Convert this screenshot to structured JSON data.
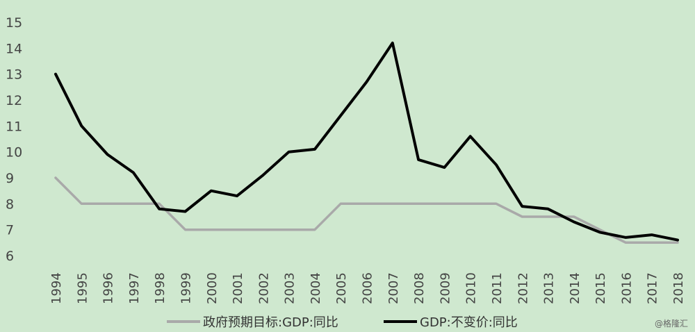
{
  "chart_data": {
    "type": "line",
    "x": [
      "1994",
      "1995",
      "1996",
      "1997",
      "1998",
      "1999",
      "2000",
      "2001",
      "2002",
      "2003",
      "2004",
      "2005",
      "2006",
      "2007",
      "2008",
      "2009",
      "2010",
      "2011",
      "2012",
      "2013",
      "2014",
      "2015",
      "2016",
      "2017",
      "2018"
    ],
    "series": [
      {
        "name": "政府预期目标:GDP:同比",
        "color": "#a9a9a9",
        "values": [
          9,
          8,
          8,
          8,
          8,
          7,
          7,
          7,
          7,
          7,
          7,
          8,
          8,
          8,
          8,
          8,
          8,
          8,
          7.5,
          7.5,
          7.5,
          7,
          6.5,
          6.5,
          6.5
        ]
      },
      {
        "name": "GDP:不变价:同比",
        "color": "#000000",
        "values": [
          13,
          11,
          9.9,
          9.2,
          7.8,
          7.7,
          8.5,
          8.3,
          9.1,
          10.0,
          10.1,
          11.4,
          12.7,
          14.2,
          9.7,
          9.4,
          10.6,
          9.5,
          7.9,
          7.8,
          7.3,
          6.9,
          6.7,
          6.8,
          6.6
        ]
      }
    ],
    "ylim": [
      6,
      15
    ],
    "yticks": [
      "6",
      "7",
      "8",
      "9",
      "10",
      "11",
      "12",
      "13",
      "14",
      "15"
    ],
    "grid": false,
    "legend_position": "bottom"
  },
  "watermark": "@格隆汇"
}
